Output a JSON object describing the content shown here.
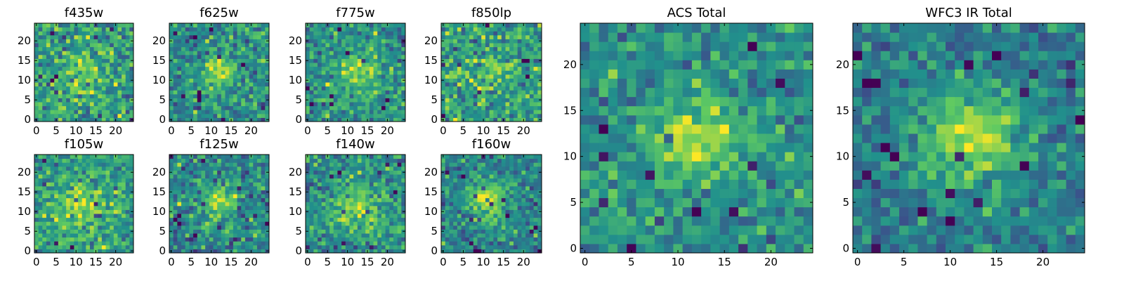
{
  "colors": {
    "colormap": [
      "#440154",
      "#3b528b",
      "#21918c",
      "#5ec962",
      "#fde725"
    ],
    "frame": "#000000",
    "background": "#ffffff"
  },
  "chart_data": [
    {
      "type": "heatmap",
      "title": "f435w",
      "xlabel": "",
      "ylabel": "",
      "grid": false,
      "xlim": [
        0,
        24
      ],
      "ylim": [
        0,
        24
      ],
      "xticks": [
        "0",
        "5",
        "10",
        "15",
        "20"
      ],
      "yticks": [
        "0",
        "5",
        "10",
        "15",
        "20"
      ],
      "grid_size": 25,
      "center": [
        12,
        11
      ],
      "peak_sigma": 4.0,
      "peak_amplitude": 0.18,
      "base_level": 0.55,
      "noise_level": 0.24,
      "seed": 11
    },
    {
      "type": "heatmap",
      "title": "f625w",
      "xlabel": "",
      "ylabel": "",
      "grid": false,
      "xlim": [
        0,
        24
      ],
      "ylim": [
        0,
        24
      ],
      "xticks": [
        "0",
        "5",
        "10",
        "15",
        "20"
      ],
      "yticks": [
        "0",
        "5",
        "10",
        "15",
        "20"
      ],
      "grid_size": 25,
      "center": [
        12,
        12
      ],
      "peak_sigma": 3.0,
      "peak_amplitude": 0.32,
      "base_level": 0.5,
      "noise_level": 0.2,
      "seed": 23
    },
    {
      "type": "heatmap",
      "title": "f775w",
      "xlabel": "",
      "ylabel": "",
      "grid": false,
      "xlim": [
        0,
        24
      ],
      "ylim": [
        0,
        24
      ],
      "xticks": [
        "0",
        "5",
        "10",
        "15",
        "20"
      ],
      "yticks": [
        "0",
        "5",
        "10",
        "15",
        "20"
      ],
      "grid_size": 25,
      "center": [
        13,
        12
      ],
      "peak_sigma": 3.5,
      "peak_amplitude": 0.35,
      "base_level": 0.5,
      "noise_level": 0.2,
      "seed": 37
    },
    {
      "type": "heatmap",
      "title": "f850lp",
      "xlabel": "",
      "ylabel": "",
      "grid": false,
      "xlim": [
        0,
        24
      ],
      "ylim": [
        0,
        24
      ],
      "xticks": [
        "0",
        "5",
        "10",
        "15",
        "20"
      ],
      "yticks": [
        "0",
        "5",
        "10",
        "15",
        "20"
      ],
      "grid_size": 25,
      "center": [
        12,
        12
      ],
      "peak_sigma": 3.5,
      "peak_amplitude": 0.2,
      "base_level": 0.55,
      "noise_level": 0.22,
      "seed": 41
    },
    {
      "type": "heatmap",
      "title": "f105w",
      "xlabel": "",
      "ylabel": "",
      "grid": false,
      "xlim": [
        0,
        24
      ],
      "ylim": [
        0,
        24
      ],
      "xticks": [
        "0",
        "5",
        "10",
        "15",
        "20"
      ],
      "yticks": [
        "0",
        "5",
        "10",
        "15",
        "20"
      ],
      "grid_size": 25,
      "center": [
        11,
        11
      ],
      "peak_sigma": 5.0,
      "peak_amplitude": 0.25,
      "base_level": 0.55,
      "noise_level": 0.2,
      "seed": 53
    },
    {
      "type": "heatmap",
      "title": "f125w",
      "xlabel": "",
      "ylabel": "",
      "grid": false,
      "xlim": [
        0,
        24
      ],
      "ylim": [
        0,
        24
      ],
      "xticks": [
        "0",
        "5",
        "10",
        "15",
        "20"
      ],
      "yticks": [
        "0",
        "5",
        "10",
        "15",
        "20"
      ],
      "grid_size": 25,
      "center": [
        12,
        12
      ],
      "peak_sigma": 3.5,
      "peak_amplitude": 0.35,
      "base_level": 0.45,
      "noise_level": 0.2,
      "seed": 67
    },
    {
      "type": "heatmap",
      "title": "f140w",
      "xlabel": "",
      "ylabel": "",
      "grid": false,
      "xlim": [
        0,
        24
      ],
      "ylim": [
        0,
        24
      ],
      "xticks": [
        "0",
        "5",
        "10",
        "15",
        "20"
      ],
      "yticks": [
        "0",
        "5",
        "10",
        "15",
        "20"
      ],
      "grid_size": 25,
      "center": [
        12,
        11
      ],
      "peak_sigma": 4.5,
      "peak_amplitude": 0.3,
      "base_level": 0.5,
      "noise_level": 0.2,
      "seed": 79
    },
    {
      "type": "heatmap",
      "title": "f160w",
      "xlabel": "",
      "ylabel": "",
      "grid": false,
      "xlim": [
        0,
        24
      ],
      "ylim": [
        0,
        24
      ],
      "xticks": [
        "0",
        "5",
        "10",
        "15",
        "20"
      ],
      "yticks": [
        "0",
        "5",
        "10",
        "15",
        "20"
      ],
      "grid_size": 25,
      "center": [
        11,
        13
      ],
      "peak_sigma": 3.5,
      "peak_amplitude": 0.42,
      "base_level": 0.45,
      "noise_level": 0.18,
      "seed": 83
    },
    {
      "type": "heatmap",
      "title": "ACS Total",
      "xlabel": "",
      "ylabel": "",
      "grid": false,
      "xlim": [
        0,
        24
      ],
      "ylim": [
        0,
        24
      ],
      "xticks": [
        "0",
        "5",
        "10",
        "15",
        "20"
      ],
      "yticks": [
        "0",
        "5",
        "10",
        "15",
        "20"
      ],
      "grid_size": 25,
      "center": [
        12,
        12
      ],
      "peak_sigma": 3.0,
      "peak_amplitude": 0.38,
      "base_level": 0.5,
      "noise_level": 0.18,
      "seed": 97
    },
    {
      "type": "heatmap",
      "title": "WFC3 IR Total",
      "xlabel": "",
      "ylabel": "",
      "grid": false,
      "xlim": [
        0,
        24
      ],
      "ylim": [
        0,
        24
      ],
      "xticks": [
        "0",
        "5",
        "10",
        "15",
        "20"
      ],
      "yticks": [
        "0",
        "5",
        "10",
        "15",
        "20"
      ],
      "grid_size": 25,
      "center": [
        12,
        12
      ],
      "peak_sigma": 4.0,
      "peak_amplitude": 0.45,
      "base_level": 0.42,
      "noise_level": 0.16,
      "seed": 101
    }
  ]
}
